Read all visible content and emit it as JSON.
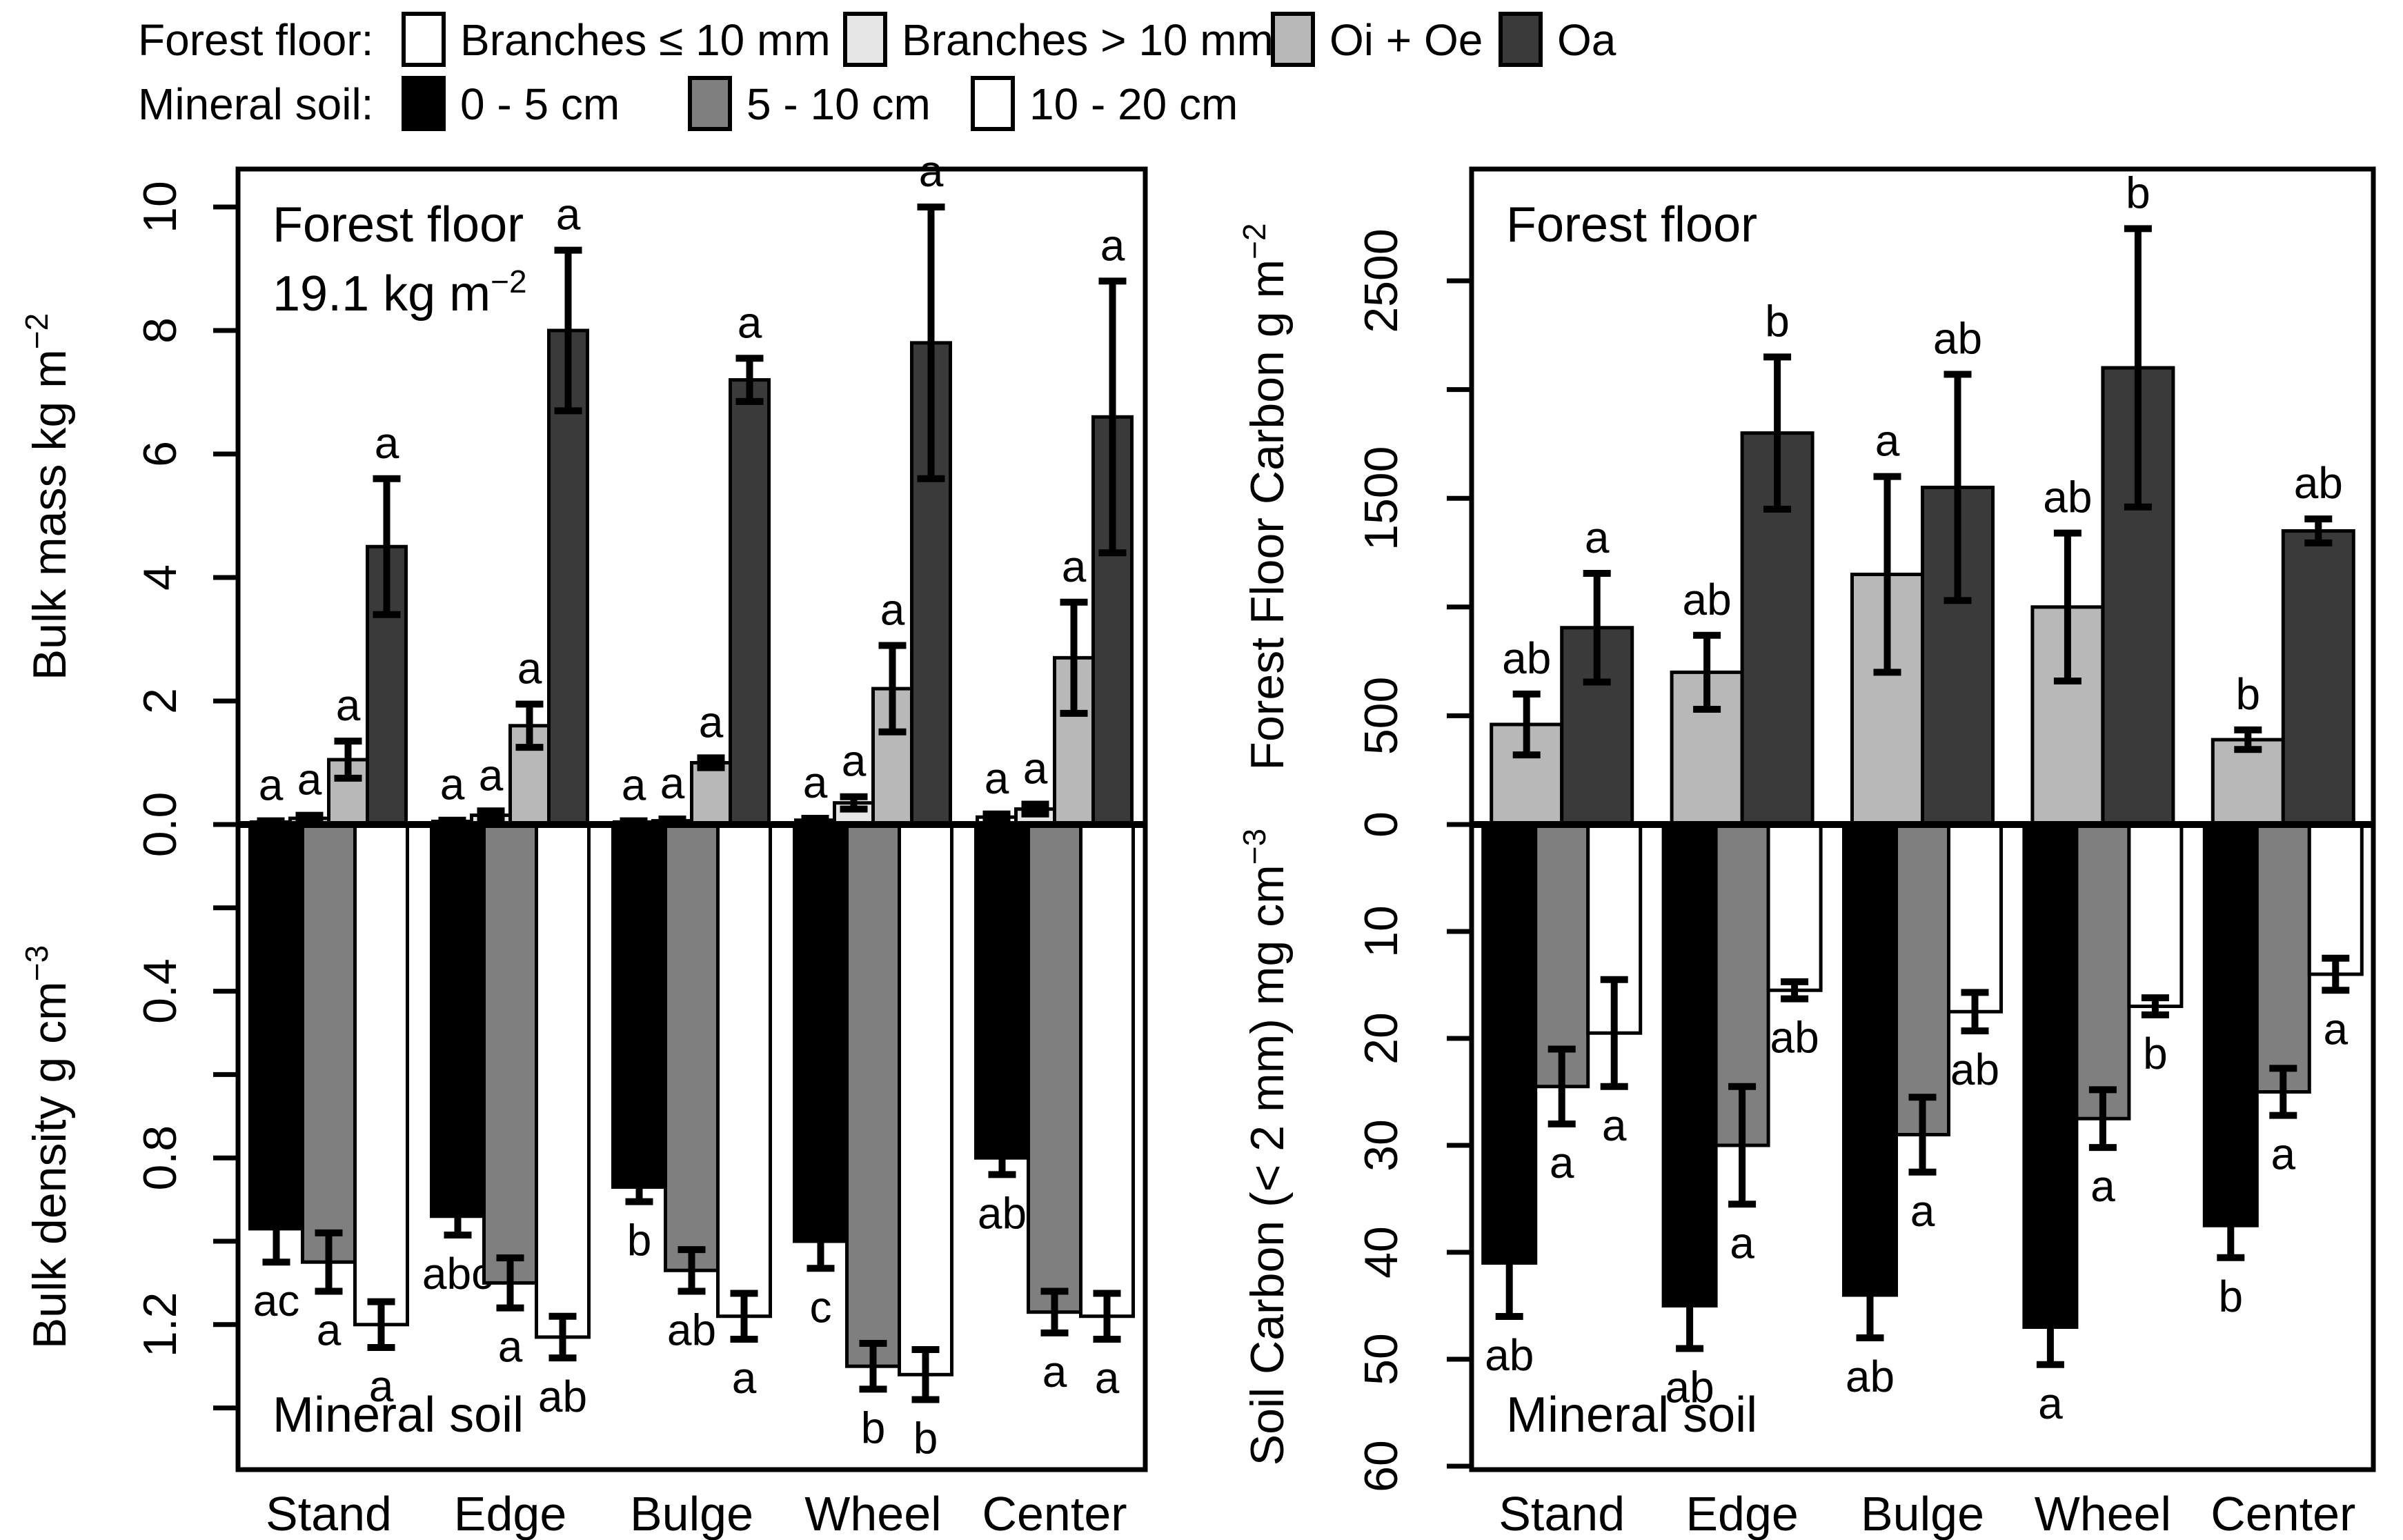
{
  "figure": {
    "background": "#ffffff",
    "x_categories": [
      "Stand",
      "Edge",
      "Bulge",
      "Wheel",
      "Center"
    ],
    "legend": {
      "rows": [
        {
          "label": "Forest floor:",
          "items": [
            {
              "name": "Branches ≤ 10 mm",
              "color": "#ffffff"
            },
            {
              "name": "Branches > 10 mm",
              "color": "#e6e6e6"
            },
            {
              "name": "Oi + Oe",
              "color": "#b8b8b8"
            },
            {
              "name": "Oa",
              "color": "#3a3a3a"
            }
          ]
        },
        {
          "label": "Mineral soil:",
          "items": [
            {
              "name": "0 - 5 cm",
              "color": "#000000"
            },
            {
              "name": "5 - 10 cm",
              "color": "#7f7f7f"
            },
            {
              "name": "10 - 20 cm",
              "color": "#ffffff"
            }
          ]
        }
      ]
    }
  },
  "chart_data": [
    {
      "id": "bulk-mass",
      "type": "bar",
      "column": 0,
      "row": "top",
      "direction": "up",
      "annotation": [
        {
          "text": "Forest floor"
        },
        {
          "text": "19.1 kg m",
          "sup": "−2"
        }
      ],
      "ylabel": {
        "text": "Bulk mass  kg m",
        "sup": "−2"
      },
      "ylim": [
        0,
        10.6
      ],
      "yticks": [
        {
          "v": 0,
          "label": "0.0"
        },
        {
          "v": 2,
          "label": "2"
        },
        {
          "v": 4,
          "label": "4"
        },
        {
          "v": 6,
          "label": "6"
        },
        {
          "v": 8,
          "label": "8"
        },
        {
          "v": 10,
          "label": "10"
        }
      ],
      "categories": [
        "Stand",
        "Edge",
        "Bulge",
        "Wheel",
        "Center"
      ],
      "series": [
        {
          "name": "Branches ≤ 10 mm",
          "color": "#ffffff",
          "values": [
            0.04,
            0.05,
            0.04,
            0.07,
            0.12
          ],
          "errors": [
            0.02,
            0.02,
            0.02,
            0.03,
            0.05
          ],
          "letters": [
            "a",
            "a",
            "a",
            "a",
            "a"
          ]
        },
        {
          "name": "Branches > 10 mm",
          "color": "#e6e6e6",
          "values": [
            0.1,
            0.15,
            0.06,
            0.35,
            0.25
          ],
          "errors": [
            0.05,
            0.07,
            0.03,
            0.1,
            0.08
          ],
          "letters": [
            "a",
            "a",
            "a",
            "a",
            "a"
          ]
        },
        {
          "name": "Oi + Oe",
          "color": "#b8b8b8",
          "values": [
            1.05,
            1.6,
            1.0,
            2.2,
            2.7
          ],
          "errors": [
            0.3,
            0.35,
            0.08,
            0.7,
            0.9
          ],
          "letters": [
            "a",
            "a",
            "a",
            "a",
            "a"
          ]
        },
        {
          "name": "Oa",
          "color": "#3a3a3a",
          "values": [
            4.5,
            8.0,
            7.2,
            7.8,
            6.6
          ],
          "errors": [
            1.1,
            1.3,
            0.35,
            2.2,
            2.2
          ],
          "letters": [
            "a",
            "a",
            "a",
            "a",
            "a"
          ]
        }
      ]
    },
    {
      "id": "bulk-density",
      "type": "bar",
      "column": 0,
      "row": "bottom",
      "direction": "down",
      "annotation": [
        {
          "text": "Mineral soil"
        }
      ],
      "ylabel": {
        "text": "Bulk density  g cm",
        "sup": "−3"
      },
      "ylim": [
        0,
        1.48
      ],
      "yticks": [
        {
          "v": 0.2,
          "label": ""
        },
        {
          "v": 0.4,
          "label": "0.4"
        },
        {
          "v": 0.6,
          "label": ""
        },
        {
          "v": 0.8,
          "label": "0.8"
        },
        {
          "v": 1.0,
          "label": ""
        },
        {
          "v": 1.2,
          "label": "1.2"
        },
        {
          "v": 1.4,
          "label": ""
        }
      ],
      "categories": [
        "Stand",
        "Edge",
        "Bulge",
        "Wheel",
        "Center"
      ],
      "series": [
        {
          "name": "0 - 5 cm",
          "color": "#000000",
          "values": [
            0.97,
            0.94,
            0.87,
            1.0,
            0.8
          ],
          "errors": [
            0.08,
            0.045,
            0.035,
            0.065,
            0.04
          ],
          "letters": [
            "ac",
            "abc",
            "b",
            "c",
            "ab"
          ]
        },
        {
          "name": "5 - 10 cm",
          "color": "#7f7f7f",
          "values": [
            1.05,
            1.1,
            1.07,
            1.3,
            1.17
          ],
          "errors": [
            0.07,
            0.06,
            0.05,
            0.055,
            0.05
          ],
          "letters": [
            "a",
            "a",
            "ab",
            "b",
            "a"
          ]
        },
        {
          "name": "10 - 20 cm",
          "color": "#ffffff",
          "values": [
            1.2,
            1.23,
            1.18,
            1.32,
            1.18
          ],
          "errors": [
            0.055,
            0.05,
            0.055,
            0.06,
            0.055
          ],
          "letters": [
            "a",
            "ab",
            "a",
            "b",
            "a"
          ]
        }
      ]
    },
    {
      "id": "forest-floor-carbon",
      "type": "bar",
      "column": 1,
      "row": "top",
      "direction": "up",
      "annotation": [
        {
          "text": "Forest floor"
        }
      ],
      "ylabel": {
        "text": "Forest Floor Carbon  g m",
        "sup": "−2"
      },
      "ylim": [
        0,
        3010
      ],
      "yticks": [
        {
          "v": 0,
          "label": "0"
        },
        {
          "v": 500,
          "label": "500"
        },
        {
          "v": 1000,
          "label": ""
        },
        {
          "v": 1500,
          "label": "1500"
        },
        {
          "v": 2000,
          "label": ""
        },
        {
          "v": 2500,
          "label": "2500"
        }
      ],
      "categories": [
        "Stand",
        "Edge",
        "Bulge",
        "Wheel",
        "Center"
      ],
      "series": [
        {
          "name": "Oi + Oe",
          "color": "#b8b8b8",
          "values": [
            460,
            700,
            1150,
            1000,
            390
          ],
          "errors": [
            140,
            170,
            450,
            340,
            45
          ],
          "letters": [
            "ab",
            "ab",
            "a",
            "ab",
            "b"
          ]
        },
        {
          "name": "Oa",
          "color": "#3a3a3a",
          "values": [
            905,
            1800,
            1550,
            2100,
            1350
          ],
          "errors": [
            250,
            350,
            520,
            640,
            55
          ],
          "letters": [
            "a",
            "b",
            "ab",
            "b",
            "ab"
          ]
        }
      ]
    },
    {
      "id": "soil-carbon",
      "type": "bar",
      "column": 1,
      "row": "bottom",
      "direction": "down",
      "annotation": [
        {
          "text": "Mineral soil"
        }
      ],
      "ylabel": {
        "text": "Soil Carbon (< 2 mm)  mg cm",
        "sup": "−3"
      },
      "ylim": [
        0,
        60
      ],
      "yticks": [
        {
          "v": 10,
          "label": "10"
        },
        {
          "v": 20,
          "label": "20"
        },
        {
          "v": 30,
          "label": "30"
        },
        {
          "v": 40,
          "label": "40"
        },
        {
          "v": 50,
          "label": "50"
        },
        {
          "v": 60,
          "label": "60"
        }
      ],
      "categories": [
        "Stand",
        "Edge",
        "Bulge",
        "Wheel",
        "Center"
      ],
      "series": [
        {
          "name": "0 - 5 cm",
          "color": "#000000",
          "values": [
            41,
            45,
            44,
            47,
            37.5
          ],
          "errors": [
            5,
            4,
            4,
            3.5,
            3
          ],
          "letters": [
            "ab",
            "ab",
            "ab",
            "a",
            "b"
          ]
        },
        {
          "name": "5 - 10 cm",
          "color": "#7f7f7f",
          "values": [
            24.5,
            30,
            29,
            27.5,
            25
          ],
          "errors": [
            3.5,
            5.5,
            3.5,
            2.7,
            2.2
          ],
          "letters": [
            "a",
            "a",
            "a",
            "a",
            "a"
          ]
        },
        {
          "name": "10 - 20 cm",
          "color": "#ffffff",
          "values": [
            19.5,
            15.5,
            17.5,
            17,
            14
          ],
          "errors": [
            5,
            0.8,
            1.8,
            0.8,
            1.5
          ],
          "letters": [
            "a",
            "ab",
            "ab",
            "b",
            "a"
          ]
        }
      ]
    }
  ]
}
